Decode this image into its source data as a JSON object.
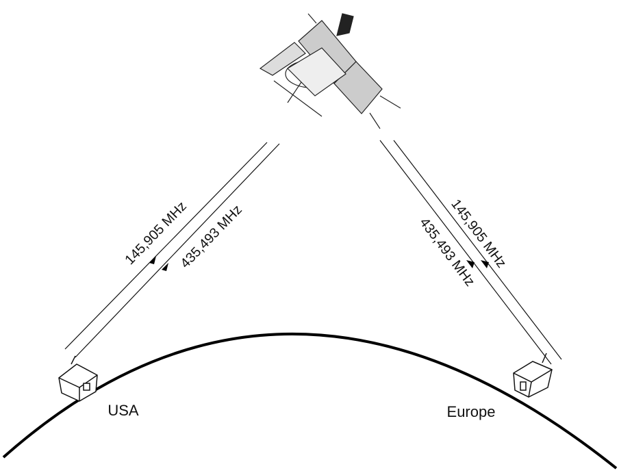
{
  "links": [
    {
      "station": "USA",
      "uplink": "145,905 MHz",
      "downlink": "435,493 MHz"
    },
    {
      "station": "Europe",
      "uplink": "145,905 MHz",
      "downlink": "435,493 MHz"
    }
  ]
}
